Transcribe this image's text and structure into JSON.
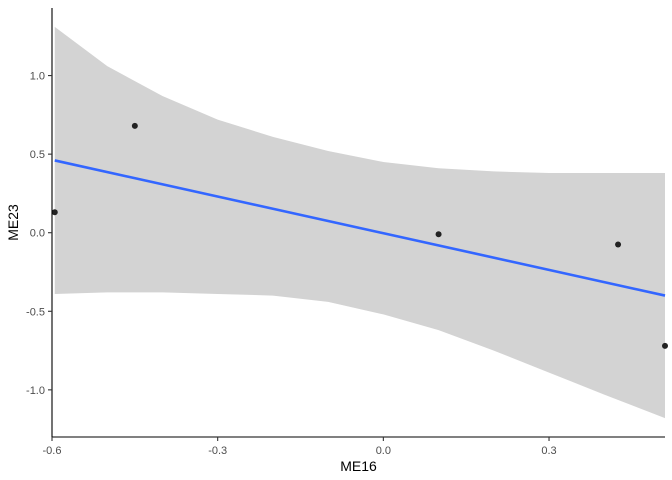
{
  "chart_data": {
    "type": "scatter",
    "xlabel": "ME16",
    "ylabel": "ME23",
    "xlim": [
      -0.6,
      0.51
    ],
    "ylim": [
      -1.3,
      1.43
    ],
    "x_ticks": [
      -0.6,
      -0.3,
      0.0,
      0.3
    ],
    "x_tick_labels": [
      "-0.6",
      "-0.3",
      "0.0",
      "0.3"
    ],
    "y_ticks": [
      -1.0,
      -0.5,
      0.0,
      0.5,
      1.0
    ],
    "y_tick_labels": [
      "-1.0",
      "-0.5",
      "0.0",
      "0.5",
      "1.0"
    ],
    "grid": false,
    "points": [
      {
        "x": -0.595,
        "y": 0.13
      },
      {
        "x": -0.45,
        "y": 0.68
      },
      {
        "x": 0.1,
        "y": -0.01
      },
      {
        "x": 0.425,
        "y": -0.075
      },
      {
        "x": 0.51,
        "y": -0.72
      }
    ],
    "fit_line": {
      "x": [
        -0.595,
        0.51
      ],
      "y": [
        0.46,
        -0.4
      ]
    },
    "confidence_band": {
      "x": [
        -0.595,
        -0.5,
        -0.4,
        -0.3,
        -0.2,
        -0.1,
        0.0,
        0.1,
        0.2,
        0.3,
        0.4,
        0.51
      ],
      "upper": [
        1.31,
        1.06,
        0.87,
        0.72,
        0.61,
        0.52,
        0.45,
        0.41,
        0.39,
        0.38,
        0.38,
        0.38
      ],
      "lower": [
        -0.39,
        -0.38,
        -0.38,
        -0.39,
        -0.4,
        -0.44,
        -0.52,
        -0.62,
        -0.75,
        -0.89,
        -1.03,
        -1.18
      ]
    },
    "colors": {
      "fit_line": "#3366ff",
      "band": "#d3d3d3",
      "points": "#222222",
      "axis": "#000000"
    }
  }
}
